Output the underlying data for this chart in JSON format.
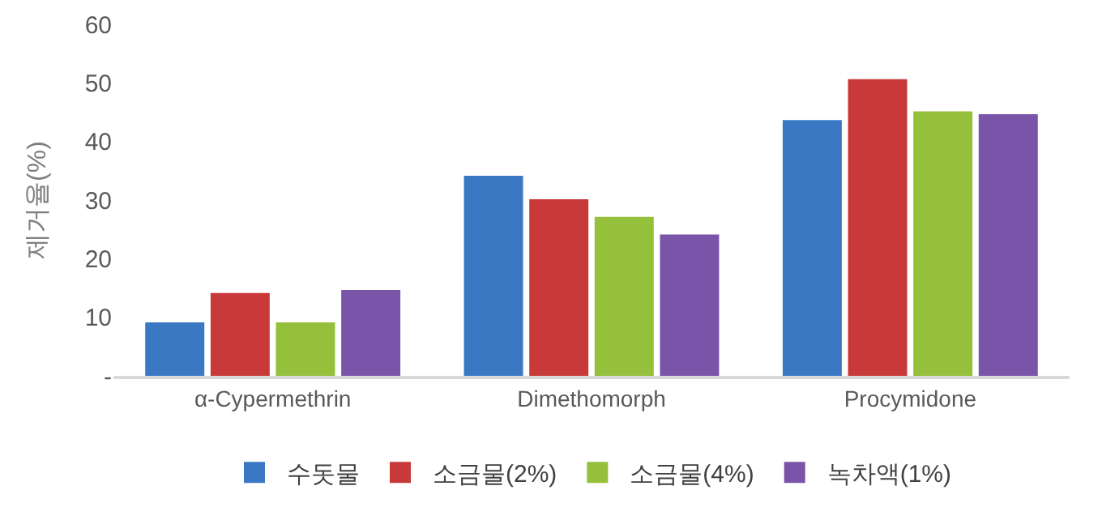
{
  "chart_data": {
    "type": "bar",
    "ylabel": "제거율(%)",
    "categories": [
      "α-Cypermethrin",
      "Dimethomorph",
      "Procymidone"
    ],
    "series": [
      {
        "name": "수돗물",
        "color": "#3a78c4",
        "values": [
          9,
          34,
          43.5
        ]
      },
      {
        "name": "소금물(2%)",
        "color": "#c8393a",
        "values": [
          14,
          30,
          50.5
        ]
      },
      {
        "name": "소금물(4%)",
        "color": "#94c03c",
        "values": [
          9,
          27,
          45
        ]
      },
      {
        "name": "녹차액(1%)",
        "color": "#7a54a8",
        "values": [
          14.5,
          24,
          44.5
        ]
      }
    ],
    "ylim": [
      0,
      60
    ],
    "yticks": [
      {
        "value": 0,
        "label": "-"
      },
      10,
      20,
      30,
      40,
      50,
      60
    ],
    "grid": false,
    "legend": "bottom"
  }
}
